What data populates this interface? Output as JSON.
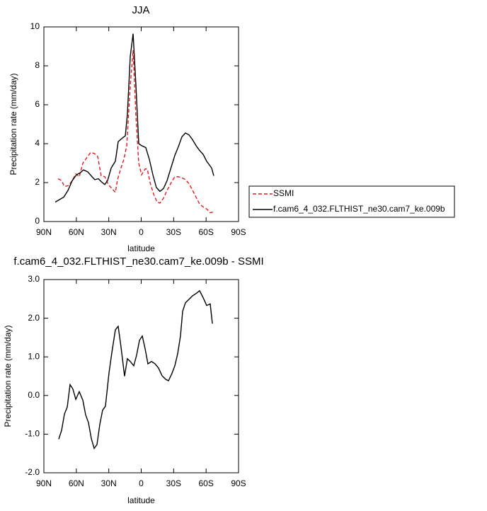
{
  "chart_data": [
    {
      "type": "line",
      "title": "JJA",
      "y_label": "Precipitation rate (mm/day)",
      "x_label": "latitude",
      "xlim": [
        90,
        -90
      ],
      "ylim": [
        0,
        10
      ],
      "xticks": [
        {
          "value": 90,
          "label": "90N"
        },
        {
          "value": 60,
          "label": "60N"
        },
        {
          "value": 30,
          "label": "30N"
        },
        0,
        {
          "value": -30,
          "label": "30S"
        },
        {
          "value": -60,
          "label": "60S"
        },
        {
          "value": -90,
          "label": "90S"
        }
      ],
      "yticks": [
        0,
        2,
        4,
        6,
        8,
        10
      ],
      "legend": "right",
      "series": [
        {
          "name": "SSMI",
          "color": "#e41a1c",
          "linestyle": "dashed",
          "x": [
            76.9,
            73.6,
            71.0,
            67.1,
            63.8,
            60.5,
            57.3,
            54.0,
            50.7,
            46.8,
            43.5,
            40.3,
            37.0,
            33.7,
            30.4,
            27.2,
            23.9,
            21.9,
            19.3,
            16.0,
            13.4,
            10.1,
            7.5,
            4.9,
            2.3,
            -0.3,
            -3.6,
            -5.6,
            -8.2,
            -11.5,
            -14.7,
            -17.3,
            -20.6,
            -23.9,
            -27.2,
            -31.1,
            -34.4,
            -37.6,
            -40.9,
            -44.2,
            -47.5,
            -50.7,
            -54.0,
            -57.3,
            -60.5,
            -63.8,
            -67.1
          ],
          "values": [
            2.2,
            2.1,
            1.8,
            1.85,
            2.1,
            2.45,
            2.3,
            3.0,
            3.25,
            3.55,
            3.5,
            3.35,
            2.35,
            2.3,
            1.9,
            1.7,
            1.5,
            2.15,
            2.65,
            3.2,
            3.9,
            7.0,
            8.8,
            5.4,
            3.0,
            2.4,
            2.7,
            2.7,
            2.0,
            1.4,
            1.0,
            0.95,
            1.2,
            1.6,
            1.95,
            2.3,
            2.3,
            2.25,
            2.15,
            1.95,
            1.6,
            1.25,
            0.9,
            0.75,
            0.65,
            0.45,
            0.5
          ]
        },
        {
          "name": "f.cam6_4_032.FLTHIST_ne30.cam7_ke.009b",
          "color": "#000000",
          "linestyle": "solid",
          "x": [
            79.5,
            71.7,
            67.7,
            63.8,
            59.9,
            56.6,
            53.3,
            49.4,
            45.5,
            42.9,
            39.6,
            37.0,
            33.7,
            31.1,
            27.8,
            23.9,
            21.3,
            17.3,
            14.7,
            12.8,
            10.1,
            7.5,
            4.9,
            2.3,
            -0.3,
            -4.2,
            -7.5,
            -10.8,
            -14.0,
            -17.3,
            -20.6,
            -23.9,
            -27.2,
            -31.1,
            -34.4,
            -37.6,
            -40.9,
            -44.2,
            -47.5,
            -50.7,
            -54.0,
            -57.3,
            -60.5,
            -63.8,
            -65.1,
            -67.1
          ],
          "values": [
            1.0,
            1.25,
            1.6,
            2.1,
            2.4,
            2.5,
            2.65,
            2.55,
            2.3,
            2.15,
            2.2,
            2.05,
            1.9,
            2.1,
            2.75,
            3.1,
            4.1,
            4.3,
            4.4,
            5.5,
            8.5,
            9.65,
            7.0,
            4.0,
            3.9,
            3.8,
            3.2,
            2.4,
            1.75,
            1.55,
            1.7,
            2.1,
            2.7,
            3.4,
            3.85,
            4.35,
            4.55,
            4.45,
            4.2,
            3.9,
            3.65,
            3.45,
            3.1,
            2.85,
            2.75,
            2.35
          ]
        }
      ]
    },
    {
      "type": "line",
      "title": "f.cam6_4_032.FLTHIST_ne30.cam7_ke.009b - SSMI",
      "y_label": "Precipitation rate (mm/day)",
      "x_label": "latitude",
      "xlim": [
        90,
        -90
      ],
      "ylim": [
        -2,
        3
      ],
      "xticks": [
        {
          "value": 90,
          "label": "90N"
        },
        {
          "value": 60,
          "label": "60N"
        },
        {
          "value": 30,
          "label": "30N"
        },
        0,
        {
          "value": -30,
          "label": "30S"
        },
        {
          "value": -60,
          "label": "60S"
        },
        {
          "value": -90,
          "label": "90S"
        }
      ],
      "yticks": [
        {
          "value": -2,
          "label": "-2.0"
        },
        {
          "value": -1,
          "label": "-1.0"
        },
        {
          "value": 0,
          "label": "0.0"
        },
        {
          "value": 1,
          "label": "1.0"
        },
        {
          "value": 2,
          "label": "2.0"
        },
        {
          "value": 3,
          "label": "3.0"
        }
      ],
      "color": "#000000",
      "x": [
        76.3,
        73.6,
        71.0,
        68.4,
        65.8,
        63.2,
        60.5,
        57.3,
        54.0,
        51.4,
        48.8,
        46.1,
        43.5,
        40.9,
        38.3,
        35.7,
        33.1,
        29.8,
        27.2,
        23.9,
        21.3,
        18.7,
        15.4,
        12.8,
        10.1,
        6.9,
        4.3,
        1.6,
        -1.0,
        -3.6,
        -6.2,
        -9.5,
        -12.8,
        -16.0,
        -19.3,
        -22.6,
        -25.2,
        -28.4,
        -31.1,
        -33.7,
        -36.3,
        -38.3,
        -40.9,
        -44.2,
        -47.5,
        -50.7,
        -54.0,
        -57.3,
        -60.5,
        -63.8,
        -65.8
      ],
      "values": [
        -1.13,
        -0.9,
        -0.48,
        -0.3,
        0.28,
        0.17,
        -0.1,
        0.1,
        -0.12,
        -0.5,
        -0.7,
        -1.12,
        -1.37,
        -1.27,
        -0.75,
        -0.38,
        -0.28,
        0.58,
        1.1,
        1.7,
        1.79,
        1.26,
        0.5,
        0.95,
        0.88,
        0.77,
        1.04,
        1.43,
        1.54,
        1.21,
        0.82,
        0.88,
        0.82,
        0.71,
        0.51,
        0.42,
        0.38,
        0.57,
        0.77,
        1.08,
        1.54,
        2.18,
        2.4,
        2.49,
        2.58,
        2.64,
        2.71,
        2.53,
        2.33,
        2.37,
        1.86
      ]
    }
  ]
}
